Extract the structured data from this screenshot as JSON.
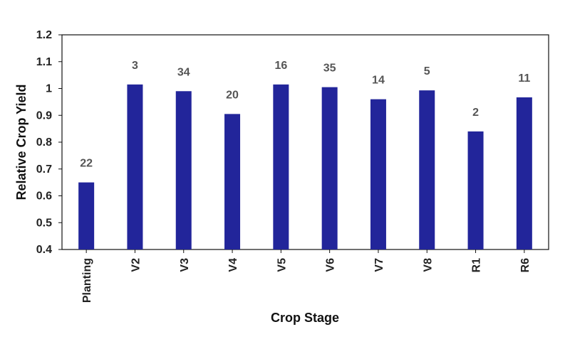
{
  "chart_data": {
    "type": "bar",
    "title": "",
    "xlabel": "Crop Stage",
    "ylabel": "Relative Crop Yield",
    "categories": [
      "Planting",
      "V2",
      "V3",
      "V4",
      "V5",
      "V6",
      "V7",
      "V8",
      "R1",
      "R6"
    ],
    "values": [
      0.65,
      1.015,
      0.99,
      0.905,
      1.015,
      1.005,
      0.96,
      0.993,
      0.84,
      0.967
    ],
    "data_labels": [
      "22",
      "3",
      "34",
      "20",
      "16",
      "35",
      "14",
      "5",
      "2",
      "11"
    ],
    "ylim": [
      0.4,
      1.2
    ],
    "yticks": [
      "0.4",
      "0.5",
      "0.6",
      "0.7",
      "0.8",
      "0.9",
      "1",
      "1.1",
      "1.2"
    ],
    "grid": false,
    "legend": "none",
    "bar_color": "#22259a"
  }
}
